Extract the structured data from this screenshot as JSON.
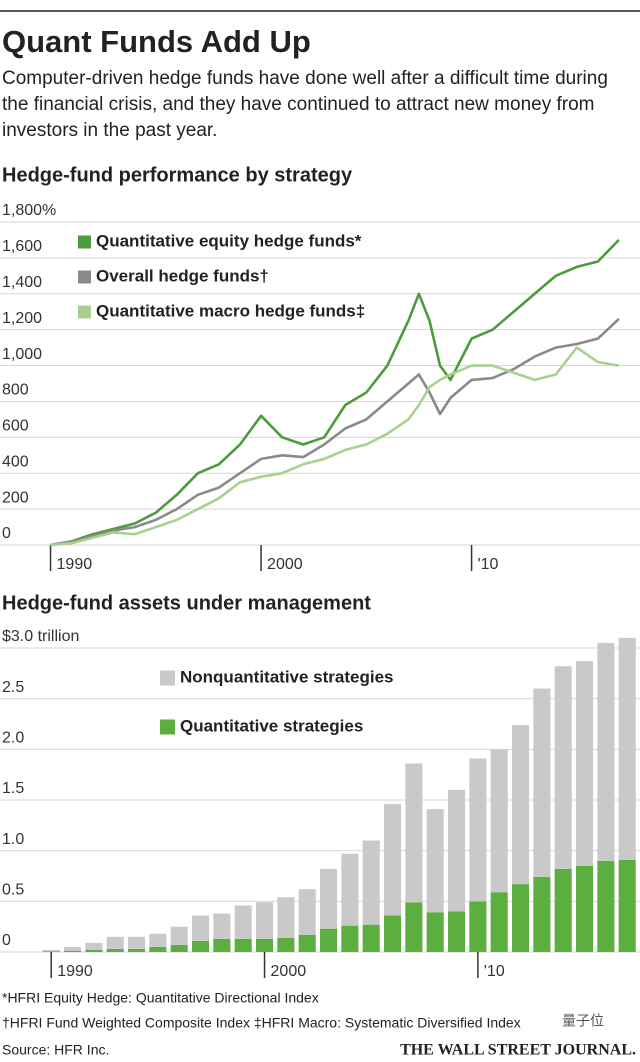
{
  "header": {
    "title": "Quant Funds Add Up",
    "subtitle": "Computer-driven hedge funds have done well after a difficult time during the financial crisis, and they have continued to attract new money from investors in the past year."
  },
  "chart_data": [
    {
      "type": "line",
      "title": "Hedge-fund performance by strategy",
      "x": [
        1990,
        1991,
        1992,
        1993,
        1994,
        1995,
        1996,
        1997,
        1998,
        1999,
        2000,
        2001,
        2002,
        2003,
        2004,
        2005,
        2006,
        2007,
        2007.5,
        2008,
        2008.5,
        2009,
        2010,
        2011,
        2012,
        2013,
        2014,
        2015,
        2016,
        2017
      ],
      "series": [
        {
          "name": "Quantitative equity hedge funds*",
          "color": "#4e9a3e",
          "values": [
            0,
            20,
            60,
            90,
            120,
            180,
            280,
            400,
            450,
            560,
            720,
            600,
            560,
            600,
            780,
            850,
            1000,
            1250,
            1400,
            1250,
            1000,
            920,
            1150,
            1200,
            1300,
            1400,
            1500,
            1550,
            1580,
            1700
          ]
        },
        {
          "name": "Overall hedge funds†",
          "color": "#8a8a8a",
          "values": [
            0,
            20,
            50,
            80,
            100,
            140,
            200,
            280,
            320,
            400,
            480,
            500,
            490,
            560,
            650,
            700,
            800,
            900,
            950,
            850,
            730,
            820,
            920,
            930,
            980,
            1050,
            1100,
            1120,
            1150,
            1260
          ]
        },
        {
          "name": "Quantitative macro hedge funds‡",
          "color": "#a9d18e",
          "values": [
            0,
            10,
            40,
            70,
            60,
            100,
            140,
            200,
            260,
            350,
            380,
            400,
            450,
            480,
            530,
            560,
            620,
            700,
            780,
            880,
            920,
            950,
            1000,
            1000,
            960,
            920,
            950,
            1100,
            1020,
            1000
          ]
        }
      ],
      "xlim": [
        1987.6,
        2018
      ],
      "xticks": [
        1990,
        2000,
        {
          "value": 2010,
          "label": "'10"
        }
      ],
      "ylim": [
        0,
        1800
      ],
      "yticks": [
        0,
        200,
        400,
        600,
        800,
        {
          "value": 1000,
          "label": "1,000"
        },
        {
          "value": 1200,
          "label": "1,200"
        },
        {
          "value": 1400,
          "label": "1,400"
        },
        {
          "value": 1600,
          "label": "1,600"
        },
        {
          "value": 1800,
          "label": "1,800%"
        }
      ],
      "grid": true
    },
    {
      "type": "bar",
      "stacked": true,
      "title": "Hedge-fund assets under management",
      "x": [
        1990,
        1991,
        1992,
        1993,
        1994,
        1995,
        1996,
        1997,
        1998,
        1999,
        2000,
        2001,
        2002,
        2003,
        2004,
        2005,
        2006,
        2007,
        2008,
        2009,
        2010,
        2011,
        2012,
        2013,
        2014,
        2015,
        2016,
        2017
      ],
      "series": [
        {
          "name": "Quantitative strategies",
          "color": "#5cae40",
          "values": [
            0.005,
            0.01,
            0.02,
            0.03,
            0.03,
            0.05,
            0.07,
            0.11,
            0.13,
            0.13,
            0.13,
            0.14,
            0.17,
            0.23,
            0.26,
            0.27,
            0.36,
            0.49,
            0.39,
            0.4,
            0.5,
            0.59,
            0.67,
            0.74,
            0.82,
            0.85,
            0.9,
            0.91
          ]
        },
        {
          "name": "Nonquantitative strategies",
          "color": "#c9c9c9",
          "values": [
            0.015,
            0.04,
            0.07,
            0.12,
            0.12,
            0.13,
            0.18,
            0.25,
            0.25,
            0.33,
            0.36,
            0.4,
            0.45,
            0.59,
            0.71,
            0.83,
            1.1,
            1.37,
            1.02,
            1.2,
            1.41,
            1.41,
            1.57,
            1.86,
            2.0,
            2.02,
            2.15,
            2.19
          ]
        }
      ],
      "xlim": [
        1987.6,
        2017.6
      ],
      "xticks": [
        1990,
        2000,
        {
          "value": 2010,
          "label": "'10"
        }
      ],
      "ylim": [
        0,
        3
      ],
      "yticks": [
        0,
        0.5,
        {
          "value": 1,
          "label": "1.0"
        },
        1.5,
        {
          "value": 2,
          "label": "2.0"
        },
        2.5,
        {
          "value": 3,
          "label": "$3.0 trillion"
        }
      ],
      "grid": true
    }
  ],
  "footer": {
    "notes": [
      "*HFRI Equity Hedge: Quantitative Directional Index",
      "†HFRI Fund Weighted Composite Index ‡HFRI Macro: Systematic Diversified Index"
    ],
    "source": "Source: HFR Inc.",
    "publisher": "THE WALL STREET JOURNAL.",
    "watermark": "量子位"
  }
}
